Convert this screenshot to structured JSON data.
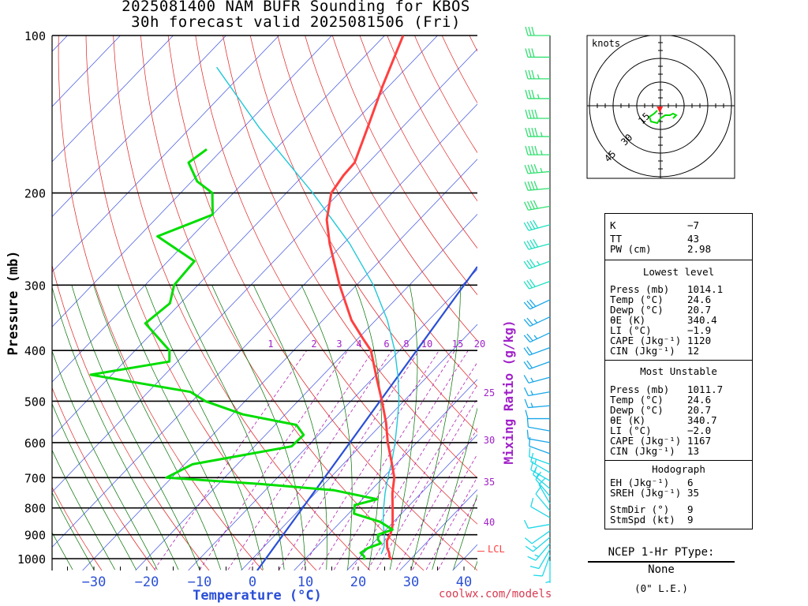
{
  "header": {
    "title_line1": "2025081400 NAM BUFR Sounding for KBOS",
    "title_line2": "30h forecast valid 2025081506 (Fri)"
  },
  "chart_data": {
    "type": "skew-t",
    "xlabel": "Temperature (°C)",
    "ylabel": "Pressure (mb)",
    "x_ticks": [
      -30,
      -20,
      -10,
      0,
      10,
      20,
      30,
      40
    ],
    "x_tick_labels": [
      "−30",
      "−20",
      "−10",
      "0",
      "10",
      "20",
      "30",
      "40"
    ],
    "y_ticks": [
      100,
      200,
      300,
      400,
      500,
      600,
      700,
      800,
      900,
      1000
    ],
    "ylim": [
      1050,
      100
    ],
    "mixing_ratio_label": "Mixing Ratio (g/kg)",
    "mixing_ratio_ticks_top": [
      "1",
      "2",
      "3",
      "4",
      "6",
      "8",
      "10",
      "15",
      "20"
    ],
    "mixing_ratio_ticks_right": [
      "25",
      "30",
      "35",
      "40"
    ],
    "lcl_label": "LCL",
    "lcl_pressure": 968,
    "colors": {
      "temperature": "#ff4040",
      "dewpoint": "#00dd00",
      "parcel": "#2a4fd6",
      "virtual_temp": "#20c8d8",
      "isotherm": "#3a4fe0",
      "dry_adiabat": "#e02020",
      "moist_adiabat": "#007000",
      "mixing_ratio": "#b020b0"
    },
    "temperature_profile": [
      {
        "p": 1005,
        "t": 26.5
      },
      {
        "p": 990,
        "t": 25.5
      },
      {
        "p": 975,
        "t": 24.8
      },
      {
        "p": 955,
        "t": 23.6
      },
      {
        "p": 925,
        "t": 22.2
      },
      {
        "p": 900,
        "t": 21.7
      },
      {
        "p": 875,
        "t": 20.9
      },
      {
        "p": 850,
        "t": 19.8
      },
      {
        "p": 800,
        "t": 17.3
      },
      {
        "p": 750,
        "t": 14.6
      },
      {
        "p": 700,
        "t": 12.1
      },
      {
        "p": 650,
        "t": 8.5
      },
      {
        "p": 600,
        "t": 4.5
      },
      {
        "p": 550,
        "t": 0.6
      },
      {
        "p": 500,
        "t": -4.1
      },
      {
        "p": 450,
        "t": -9.5
      },
      {
        "p": 400,
        "t": -15.4
      },
      {
        "p": 380,
        "t": -19.0
      },
      {
        "p": 350,
        "t": -24.6
      },
      {
        "p": 300,
        "t": -33.2
      },
      {
        "p": 250,
        "t": -42.6
      },
      {
        "p": 225,
        "t": -47.5
      },
      {
        "p": 200,
        "t": -51.5
      },
      {
        "p": 185,
        "t": -52.4
      },
      {
        "p": 175,
        "t": -52.6
      },
      {
        "p": 150,
        "t": -56.5
      },
      {
        "p": 125,
        "t": -61.2
      },
      {
        "p": 100,
        "t": -66.5
      }
    ],
    "dewpoint_profile": [
      {
        "p": 1005,
        "t": 21.4
      },
      {
        "p": 990,
        "t": 20.7
      },
      {
        "p": 975,
        "t": 19.4
      },
      {
        "p": 955,
        "t": 19.9
      },
      {
        "p": 935,
        "t": 21.5
      },
      {
        "p": 920,
        "t": 20.3
      },
      {
        "p": 900,
        "t": 19.4
      },
      {
        "p": 880,
        "t": 21.2
      },
      {
        "p": 850,
        "t": 17.4
      },
      {
        "p": 820,
        "t": 11.0
      },
      {
        "p": 790,
        "t": 9.6
      },
      {
        "p": 770,
        "t": 12.8
      },
      {
        "p": 740,
        "t": 3.0
      },
      {
        "p": 720,
        "t": -12.0
      },
      {
        "p": 700,
        "t": -31.0
      },
      {
        "p": 660,
        "t": -28.5
      },
      {
        "p": 610,
        "t": -13.0
      },
      {
        "p": 580,
        "t": -12.8
      },
      {
        "p": 555,
        "t": -16.0
      },
      {
        "p": 530,
        "t": -28.0
      },
      {
        "p": 500,
        "t": -37.5
      },
      {
        "p": 480,
        "t": -42.0
      },
      {
        "p": 445,
        "t": -64.0
      },
      {
        "p": 420,
        "t": -51.5
      },
      {
        "p": 400,
        "t": -53.5
      },
      {
        "p": 355,
        "t": -63.0
      },
      {
        "p": 325,
        "t": -62.0
      },
      {
        "p": 300,
        "t": -64.5
      },
      {
        "p": 270,
        "t": -65.0
      },
      {
        "p": 242,
        "t": -76.5
      },
      {
        "p": 220,
        "t": -70.0
      },
      {
        "p": 200,
        "t": -74.0
      },
      {
        "p": 190,
        "t": -79.0
      },
      {
        "p": 175,
        "t": -84.0
      },
      {
        "p": 165,
        "t": -83.0
      }
    ],
    "virtual_temperature_profile": [
      {
        "p": 980,
        "t": 23.5
      },
      {
        "p": 950,
        "t": 22.8
      },
      {
        "p": 900,
        "t": 20.6
      },
      {
        "p": 850,
        "t": 18.0
      },
      {
        "p": 800,
        "t": 15.6
      },
      {
        "p": 750,
        "t": 13.2
      },
      {
        "p": 700,
        "t": 10.9
      },
      {
        "p": 650,
        "t": 8.6
      },
      {
        "p": 600,
        "t": 5.9
      },
      {
        "p": 550,
        "t": 2.7
      },
      {
        "p": 500,
        "t": -0.9
      },
      {
        "p": 450,
        "t": -5.4
      },
      {
        "p": 400,
        "t": -10.9
      },
      {
        "p": 350,
        "t": -17.8
      },
      {
        "p": 300,
        "t": -26.8
      },
      {
        "p": 250,
        "t": -38.8
      },
      {
        "p": 200,
        "t": -55.0
      },
      {
        "p": 150,
        "t": -77.0
      },
      {
        "p": 115,
        "t": -96.0
      }
    ],
    "wind_barbs": [
      {
        "p": 1010,
        "dir_deg": 180,
        "speed_kt": 5
      },
      {
        "p": 985,
        "dir_deg": 200,
        "speed_kt": 8
      },
      {
        "p": 960,
        "dir_deg": 210,
        "speed_kt": 10
      },
      {
        "p": 935,
        "dir_deg": 220,
        "speed_kt": 13
      },
      {
        "p": 910,
        "dir_deg": 230,
        "speed_kt": 14
      },
      {
        "p": 885,
        "dir_deg": 235,
        "speed_kt": 12
      },
      {
        "p": 860,
        "dir_deg": 260,
        "speed_kt": 10
      },
      {
        "p": 835,
        "dir_deg": 300,
        "speed_kt": 8
      },
      {
        "p": 810,
        "dir_deg": 320,
        "speed_kt": 10
      },
      {
        "p": 785,
        "dir_deg": 330,
        "speed_kt": 10
      },
      {
        "p": 760,
        "dir_deg": 320,
        "speed_kt": 12
      },
      {
        "p": 735,
        "dir_deg": 310,
        "speed_kt": 14
      },
      {
        "p": 710,
        "dir_deg": 300,
        "speed_kt": 15
      },
      {
        "p": 685,
        "dir_deg": 300,
        "speed_kt": 15
      },
      {
        "p": 660,
        "dir_deg": 290,
        "speed_kt": 12
      },
      {
        "p": 630,
        "dir_deg": 290,
        "speed_kt": 10
      },
      {
        "p": 600,
        "dir_deg": 280,
        "speed_kt": 8
      },
      {
        "p": 570,
        "dir_deg": 280,
        "speed_kt": 10
      },
      {
        "p": 540,
        "dir_deg": 270,
        "speed_kt": 12
      },
      {
        "p": 510,
        "dir_deg": 265,
        "speed_kt": 14
      },
      {
        "p": 480,
        "dir_deg": 260,
        "speed_kt": 15
      },
      {
        "p": 450,
        "dir_deg": 255,
        "speed_kt": 17
      },
      {
        "p": 420,
        "dir_deg": 250,
        "speed_kt": 20
      },
      {
        "p": 395,
        "dir_deg": 250,
        "speed_kt": 22
      },
      {
        "p": 370,
        "dir_deg": 245,
        "speed_kt": 25
      },
      {
        "p": 345,
        "dir_deg": 245,
        "speed_kt": 25
      },
      {
        "p": 320,
        "dir_deg": 245,
        "speed_kt": 28
      },
      {
        "p": 295,
        "dir_deg": 250,
        "speed_kt": 30
      },
      {
        "p": 270,
        "dir_deg": 250,
        "speed_kt": 35
      },
      {
        "p": 250,
        "dir_deg": 255,
        "speed_kt": 40
      },
      {
        "p": 230,
        "dir_deg": 255,
        "speed_kt": 40
      },
      {
        "p": 212,
        "dir_deg": 260,
        "speed_kt": 40
      },
      {
        "p": 196,
        "dir_deg": 265,
        "speed_kt": 40
      },
      {
        "p": 182,
        "dir_deg": 265,
        "speed_kt": 45
      },
      {
        "p": 169,
        "dir_deg": 270,
        "speed_kt": 45
      },
      {
        "p": 156,
        "dir_deg": 270,
        "speed_kt": 45
      },
      {
        "p": 144,
        "dir_deg": 270,
        "speed_kt": 40
      },
      {
        "p": 132,
        "dir_deg": 270,
        "speed_kt": 35
      },
      {
        "p": 121,
        "dir_deg": 270,
        "speed_kt": 35
      },
      {
        "p": 110,
        "dir_deg": 270,
        "speed_kt": 30
      },
      {
        "p": 100,
        "dir_deg": 270,
        "speed_kt": 30
      }
    ],
    "hodograph": {
      "unit_label": "knots",
      "ring_labels": [
        "15",
        "30",
        "45"
      ],
      "points": [
        {
          "u": -2,
          "v": -3
        },
        {
          "u": -4,
          "v": -5
        },
        {
          "u": -7,
          "v": -7
        },
        {
          "u": -6,
          "v": -10
        },
        {
          "u": -2,
          "v": -11
        },
        {
          "u": 0,
          "v": -8
        },
        {
          "u": 3,
          "v": -6
        },
        {
          "u": 6,
          "v": -6
        },
        {
          "u": 8,
          "v": -5
        },
        {
          "u": 10,
          "v": -6
        },
        {
          "u": 8,
          "v": -8
        }
      ],
      "storm_motion_uv": {
        "u": -0.4,
        "v": -3.5
      }
    }
  },
  "indices": {
    "k_label": "K",
    "k": "−7",
    "tt_label": "TT",
    "tt": "43",
    "pw_label": "PW (cm)",
    "pw": "2.98"
  },
  "lowest_level": {
    "title": "Lowest level",
    "press_label": "Press (mb)",
    "press": "1014.1",
    "temp_label": "Temp (°C)",
    "temp": "24.6",
    "dewp_label": "Dewp (°C)",
    "dewp": "20.7",
    "thetae_label": "θE (K)",
    "thetae": "340.4",
    "li_label": "LI (°C)",
    "li": "−1.9",
    "cape_label": "CAPE (Jkg⁻¹)",
    "cape": "1120",
    "cin_label": "CIN (Jkg⁻¹)",
    "cin": "12"
  },
  "most_unstable": {
    "title": "Most Unstable",
    "press_label": "Press (mb)",
    "press": "1011.7",
    "temp_label": "Temp (°C)",
    "temp": "24.6",
    "dewp_label": "Dewp (°C)",
    "dewp": "20.7",
    "thetae_label": "θE (K)",
    "thetae": "340.7",
    "li_label": "LI (°C)",
    "li": "−2.0",
    "cape_label": "CAPE (Jkg⁻¹)",
    "cape": "1167",
    "cin_label": "CIN (Jkg⁻¹)",
    "cin": "13"
  },
  "hodograph_table": {
    "title": "Hodograph",
    "eh_label": "EH (Jkg⁻¹)",
    "eh": "6",
    "sreh_label": "SREH (Jkg⁻¹)",
    "sreh": "35",
    "stmdir_label": "StmDir (°)",
    "stmdir": "9",
    "stmspd_label": "StmSpd (kt)",
    "stmspd": "9"
  },
  "ptype": {
    "title": "NCEP 1-Hr PType:",
    "value": "None",
    "liquid_equiv": "(0\" L.E.)"
  },
  "credit": "coolwx.com/models"
}
